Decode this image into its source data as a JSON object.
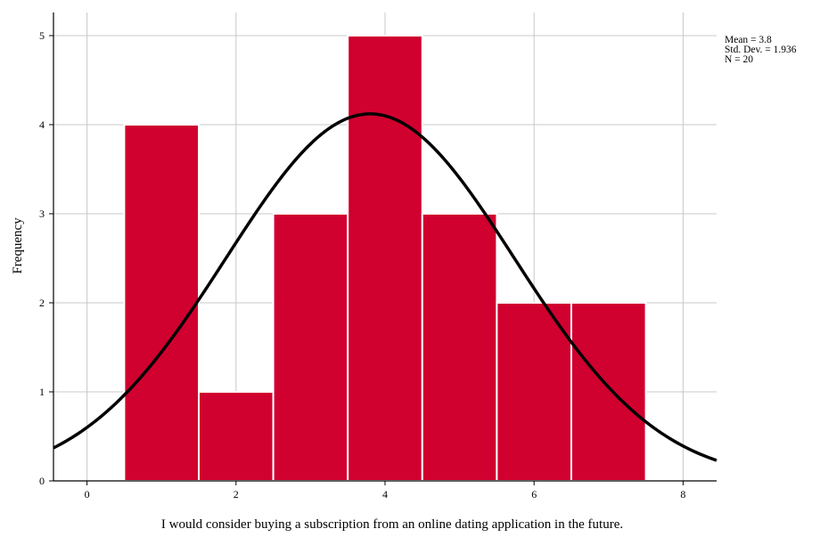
{
  "chart_data": {
    "type": "bar",
    "subtype": "histogram",
    "bins": [
      {
        "x_start": 0.5,
        "x_end": 1.5,
        "count": 4
      },
      {
        "x_start": 1.5,
        "x_end": 2.5,
        "count": 1
      },
      {
        "x_start": 2.5,
        "x_end": 3.5,
        "count": 3
      },
      {
        "x_start": 3.5,
        "x_end": 4.5,
        "count": 5
      },
      {
        "x_start": 4.5,
        "x_end": 5.5,
        "count": 3
      },
      {
        "x_start": 5.5,
        "x_end": 6.5,
        "count": 2
      },
      {
        "x_start": 6.5,
        "x_end": 7.5,
        "count": 2
      }
    ],
    "normal_curve": {
      "mean": 3.8,
      "std_dev": 1.936,
      "n": 20
    },
    "title": "",
    "xlabel": "I would consider buying a subscription from an online dating application in the future.",
    "ylabel": "Frequency",
    "xlim": [
      -0.45,
      8.45
    ],
    "ylim": [
      0,
      5.26
    ],
    "x_ticks": [
      "0",
      "2",
      "4",
      "6",
      "8"
    ],
    "y_ticks": [
      "0",
      "1",
      "2",
      "3",
      "4",
      "5"
    ],
    "grid": true,
    "bar_color": "#d0002f",
    "curve_color": "#000000",
    "stats_labels": [
      "Mean = 3.8",
      "Std. Dev. = 1.936",
      "N = 20"
    ]
  }
}
